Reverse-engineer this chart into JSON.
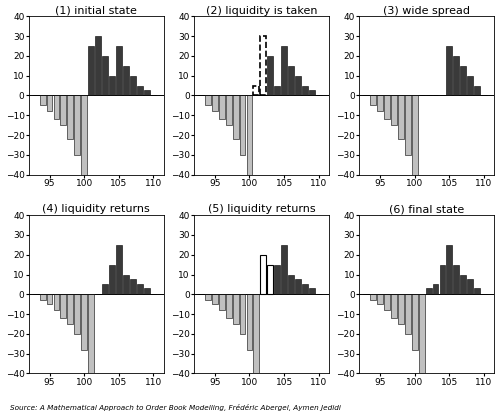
{
  "titles": [
    "(1) initial state",
    "(2) liquidity is taken",
    "(3) wide spread",
    "(4) liquidity returns",
    "(5) liquidity returns",
    "(6) final state"
  ],
  "x_positions": [
    93,
    94,
    95,
    96,
    97,
    98,
    99,
    100,
    101,
    102,
    103,
    104,
    105,
    106,
    107,
    108,
    109,
    110
  ],
  "panels": {
    "1": {
      "bid": [
        0,
        -5,
        -8,
        -12,
        -15,
        -22,
        -30,
        -40,
        0,
        0,
        0,
        0,
        0,
        0,
        0,
        0,
        0,
        0
      ],
      "ask": [
        0,
        0,
        0,
        0,
        0,
        0,
        0,
        0,
        25,
        30,
        20,
        10,
        25,
        15,
        10,
        5,
        3,
        0
      ]
    },
    "2": {
      "bid": [
        0,
        -5,
        -8,
        -12,
        -15,
        -22,
        -30,
        -40,
        0,
        0,
        0,
        0,
        0,
        0,
        0,
        0,
        0,
        0
      ],
      "ask": [
        0,
        0,
        0,
        0,
        0,
        0,
        0,
        0,
        0,
        0,
        20,
        5,
        25,
        15,
        10,
        5,
        3,
        0
      ],
      "dashed_ask": [
        0,
        0,
        0,
        0,
        0,
        0,
        0,
        0,
        5,
        30,
        0,
        0,
        0,
        0,
        0,
        0,
        0,
        0
      ]
    },
    "3": {
      "bid": [
        0,
        -5,
        -8,
        -12,
        -15,
        -22,
        -30,
        -40,
        0,
        0,
        0,
        0,
        0,
        0,
        0,
        0,
        0,
        0
      ],
      "ask": [
        0,
        0,
        0,
        0,
        0,
        0,
        0,
        0,
        0,
        0,
        0,
        0,
        25,
        20,
        15,
        10,
        5,
        0
      ]
    },
    "4": {
      "bid": [
        0,
        -3,
        -5,
        -8,
        -12,
        -15,
        -20,
        -28,
        -40,
        0,
        0,
        0,
        0,
        0,
        0,
        0,
        0,
        0
      ],
      "ask": [
        0,
        0,
        0,
        0,
        0,
        0,
        0,
        0,
        0,
        0,
        5,
        15,
        25,
        10,
        8,
        5,
        3,
        0
      ]
    },
    "5": {
      "bid": [
        0,
        -3,
        -5,
        -8,
        -12,
        -15,
        -20,
        -28,
        -40,
        0,
        0,
        0,
        0,
        0,
        0,
        0,
        0,
        0
      ],
      "ask": [
        0,
        0,
        0,
        0,
        0,
        0,
        0,
        0,
        0,
        0,
        5,
        15,
        25,
        10,
        8,
        5,
        3,
        0
      ],
      "new_ask": [
        0,
        0,
        0,
        0,
        0,
        0,
        0,
        0,
        0,
        20,
        15,
        0,
        0,
        0,
        0,
        0,
        0,
        0
      ]
    },
    "6": {
      "bid": [
        0,
        -3,
        -5,
        -8,
        -12,
        -15,
        -20,
        -28,
        -40,
        0,
        0,
        0,
        0,
        0,
        0,
        0,
        0,
        0
      ],
      "ask": [
        0,
        0,
        0,
        0,
        0,
        0,
        0,
        0,
        0,
        3,
        5,
        15,
        25,
        15,
        10,
        8,
        3,
        0
      ]
    }
  },
  "bid_color": "#c0c0c0",
  "ask_color": "#3a3a3a",
  "ylim": [
    -40,
    40
  ],
  "xlim": [
    92.0,
    111.5
  ],
  "xticks": [
    95,
    100,
    105,
    110
  ],
  "yticks": [
    -40,
    -30,
    -20,
    -10,
    0,
    10,
    20,
    30,
    40
  ],
  "source_text": "Source: A Mathematical Approach to Order Book Modelling, Frédéric Abergel, Aymen Jedidi",
  "bar_width": 0.85,
  "fig_width": 5.0,
  "fig_height": 4.15,
  "dpi": 100
}
